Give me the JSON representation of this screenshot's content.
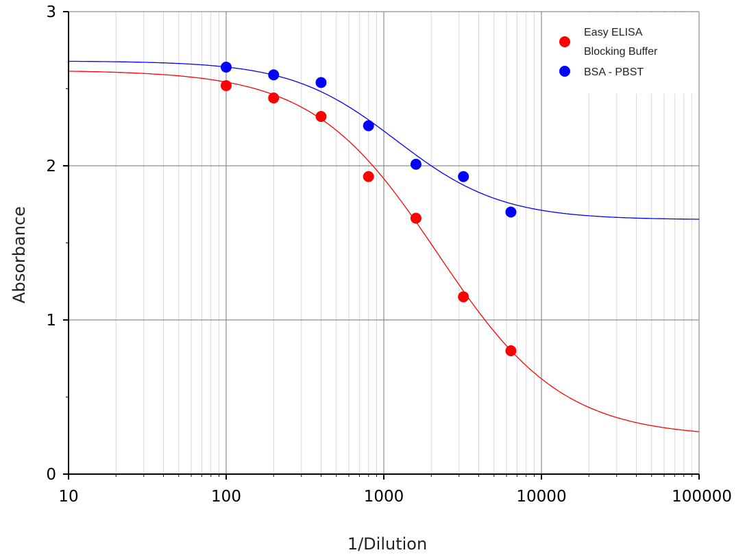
{
  "chart_data": {
    "type": "scatter",
    "title": "",
    "xlabel": "1/Dilution",
    "ylabel": "Absorbance",
    "xscale": "log",
    "xlim": [
      10,
      100000
    ],
    "ylim": [
      0,
      3
    ],
    "xticks": [
      "10",
      "100",
      "1000",
      "10000",
      "100000"
    ],
    "yticks": [
      "0",
      "1",
      "2",
      "3"
    ],
    "grid": true,
    "legend_position": "top-right",
    "series": [
      {
        "name_lines": [
          "Easy ELISA",
          "Blocking Buffer"
        ],
        "color": "#ff0000",
        "x": [
          100,
          200,
          400,
          800,
          1600,
          3200,
          6400
        ],
        "y": [
          2.52,
          2.44,
          2.32,
          1.93,
          1.66,
          1.15,
          0.8
        ],
        "fit": {
          "model": "4PL",
          "top": 2.62,
          "bottom": 0.24,
          "ec50": 2200,
          "hill": 1.1
        }
      },
      {
        "name_lines": [
          "BSA - PBST"
        ],
        "color": "#0000ff",
        "x": [
          100,
          200,
          400,
          800,
          1600,
          3200,
          6400
        ],
        "y": [
          2.64,
          2.59,
          2.54,
          2.26,
          2.01,
          1.93,
          1.7
        ],
        "fit": {
          "model": "4PL",
          "top": 2.68,
          "bottom": 1.65,
          "ec50": 1200,
          "hill": 1.3
        }
      }
    ]
  }
}
